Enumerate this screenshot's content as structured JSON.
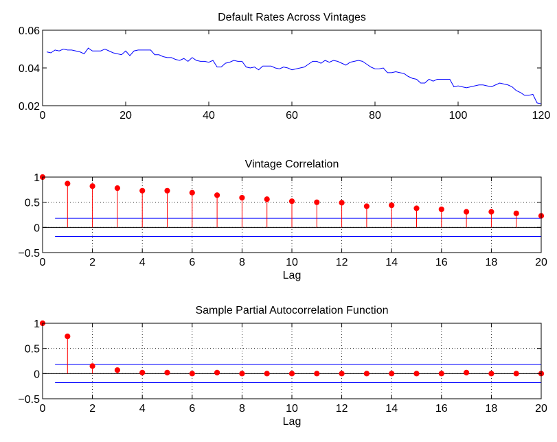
{
  "colors": {
    "line": "#0000ff",
    "stem": "#ff0000",
    "bounds": "#0000ff",
    "zero": "#000000",
    "axes": "#000000",
    "grid": "#000000"
  },
  "chart_data": [
    {
      "type": "line",
      "title": "Default Rates Across Vintages",
      "xlabel": "",
      "ylabel": "",
      "xlim": [
        0,
        120
      ],
      "ylim": [
        0.02,
        0.06
      ],
      "xticks": [
        0,
        20,
        40,
        60,
        80,
        100,
        120
      ],
      "yticks": [
        0.02,
        0.04,
        0.06
      ],
      "xtick_labels": [
        "0",
        "20",
        "40",
        "60",
        "80",
        "100",
        "120"
      ],
      "ytick_labels": [
        "0.02",
        "0.04",
        "0.06"
      ],
      "grid": false,
      "series": [
        {
          "x": [
            1,
            2,
            3,
            4,
            5,
            6,
            7,
            8,
            9,
            10,
            11,
            12,
            13,
            14,
            15,
            16,
            17,
            18,
            19,
            20,
            21,
            22,
            23,
            24,
            25,
            26,
            27,
            28,
            29,
            30,
            31,
            32,
            33,
            34,
            35,
            36,
            37,
            38,
            39,
            40,
            41,
            42,
            43,
            44,
            45,
            46,
            47,
            48,
            49,
            50,
            51,
            52,
            53,
            54,
            55,
            56,
            57,
            58,
            59,
            60,
            61,
            62,
            63,
            64,
            65,
            66,
            67,
            68,
            69,
            70,
            71,
            72,
            73,
            74,
            75,
            76,
            77,
            78,
            79,
            80,
            81,
            82,
            83,
            84,
            85,
            86,
            87,
            88,
            89,
            90,
            91,
            92,
            93,
            94,
            95,
            96,
            97,
            98,
            99,
            100,
            101,
            102,
            103,
            104,
            105,
            106,
            107,
            108,
            109,
            110,
            111,
            112,
            113,
            114,
            115,
            116,
            117,
            118,
            119,
            120
          ],
          "y": [
            0.0485,
            0.048,
            0.0495,
            0.049,
            0.05,
            0.0495,
            0.0495,
            0.049,
            0.0485,
            0.0475,
            0.0505,
            0.049,
            0.049,
            0.049,
            0.05,
            0.049,
            0.048,
            0.0475,
            0.047,
            0.049,
            0.0465,
            0.049,
            0.0495,
            0.0495,
            0.0495,
            0.0495,
            0.047,
            0.047,
            0.046,
            0.0455,
            0.0455,
            0.0445,
            0.044,
            0.045,
            0.0435,
            0.0455,
            0.044,
            0.0435,
            0.0435,
            0.043,
            0.044,
            0.0405,
            0.0405,
            0.0425,
            0.043,
            0.044,
            0.0435,
            0.0435,
            0.0405,
            0.04,
            0.0405,
            0.039,
            0.041,
            0.041,
            0.041,
            0.04,
            0.0395,
            0.0405,
            0.04,
            0.039,
            0.0395,
            0.04,
            0.0405,
            0.042,
            0.0435,
            0.0435,
            0.0425,
            0.044,
            0.043,
            0.044,
            0.0435,
            0.0425,
            0.0415,
            0.043,
            0.0435,
            0.044,
            0.0435,
            0.042,
            0.0405,
            0.0395,
            0.0395,
            0.04,
            0.0375,
            0.0375,
            0.038,
            0.0375,
            0.037,
            0.0355,
            0.0345,
            0.034,
            0.032,
            0.032,
            0.034,
            0.033,
            0.034,
            0.034,
            0.034,
            0.034,
            0.03,
            0.0305,
            0.03,
            0.0295,
            0.03,
            0.0305,
            0.031,
            0.031,
            0.0305,
            0.03,
            0.031,
            0.032,
            0.0315,
            0.031,
            0.03,
            0.028,
            0.027,
            0.0255,
            0.0255,
            0.026,
            0.0215,
            0.021
          ]
        }
      ]
    },
    {
      "type": "stem",
      "title": "Vintage Correlation",
      "xlabel": "Lag",
      "ylabel": "",
      "xlim": [
        0,
        20
      ],
      "ylim": [
        -0.5,
        1
      ],
      "xticks": [
        0,
        2,
        4,
        6,
        8,
        10,
        12,
        14,
        16,
        18,
        20
      ],
      "yticks": [
        -0.5,
        0,
        0.5,
        1
      ],
      "xtick_labels": [
        "0",
        "2",
        "4",
        "6",
        "8",
        "10",
        "12",
        "14",
        "16",
        "18",
        "20"
      ],
      "ytick_labels": [
        "−0.5",
        "0",
        "0.5",
        "1"
      ],
      "grid": true,
      "lags": [
        0,
        1,
        2,
        3,
        4,
        5,
        6,
        7,
        8,
        9,
        10,
        11,
        12,
        13,
        14,
        15,
        16,
        17,
        18,
        19,
        20
      ],
      "values": [
        1.0,
        0.87,
        0.82,
        0.78,
        0.73,
        0.73,
        0.69,
        0.64,
        0.59,
        0.56,
        0.52,
        0.5,
        0.49,
        0.42,
        0.44,
        0.38,
        0.36,
        0.31,
        0.31,
        0.28,
        0.23
      ],
      "bounds": [
        0.18,
        -0.18
      ]
    },
    {
      "type": "stem",
      "title": "Sample Partial Autocorrelation Function",
      "xlabel": "Lag",
      "ylabel": "",
      "xlim": [
        0,
        20
      ],
      "ylim": [
        -0.5,
        1
      ],
      "xticks": [
        0,
        2,
        4,
        6,
        8,
        10,
        12,
        14,
        16,
        18,
        20
      ],
      "yticks": [
        -0.5,
        0,
        0.5,
        1
      ],
      "xtick_labels": [
        "0",
        "2",
        "4",
        "6",
        "8",
        "10",
        "12",
        "14",
        "16",
        "18",
        "20"
      ],
      "ytick_labels": [
        "−0.5",
        "0",
        "0.5",
        "1"
      ],
      "grid": true,
      "lags": [
        0,
        1,
        2,
        3,
        4,
        5,
        6,
        7,
        8,
        9,
        10,
        11,
        12,
        13,
        14,
        15,
        16,
        17,
        18,
        19,
        20
      ],
      "values": [
        1.0,
        0.74,
        0.15,
        0.07,
        0.02,
        0.02,
        0.0,
        0.02,
        0.0,
        0.0,
        0.0,
        0.0,
        0.0,
        0.0,
        0.0,
        0.0,
        0.0,
        0.02,
        0.0,
        0.0,
        0.0
      ],
      "bounds": [
        0.18,
        -0.18
      ]
    }
  ]
}
